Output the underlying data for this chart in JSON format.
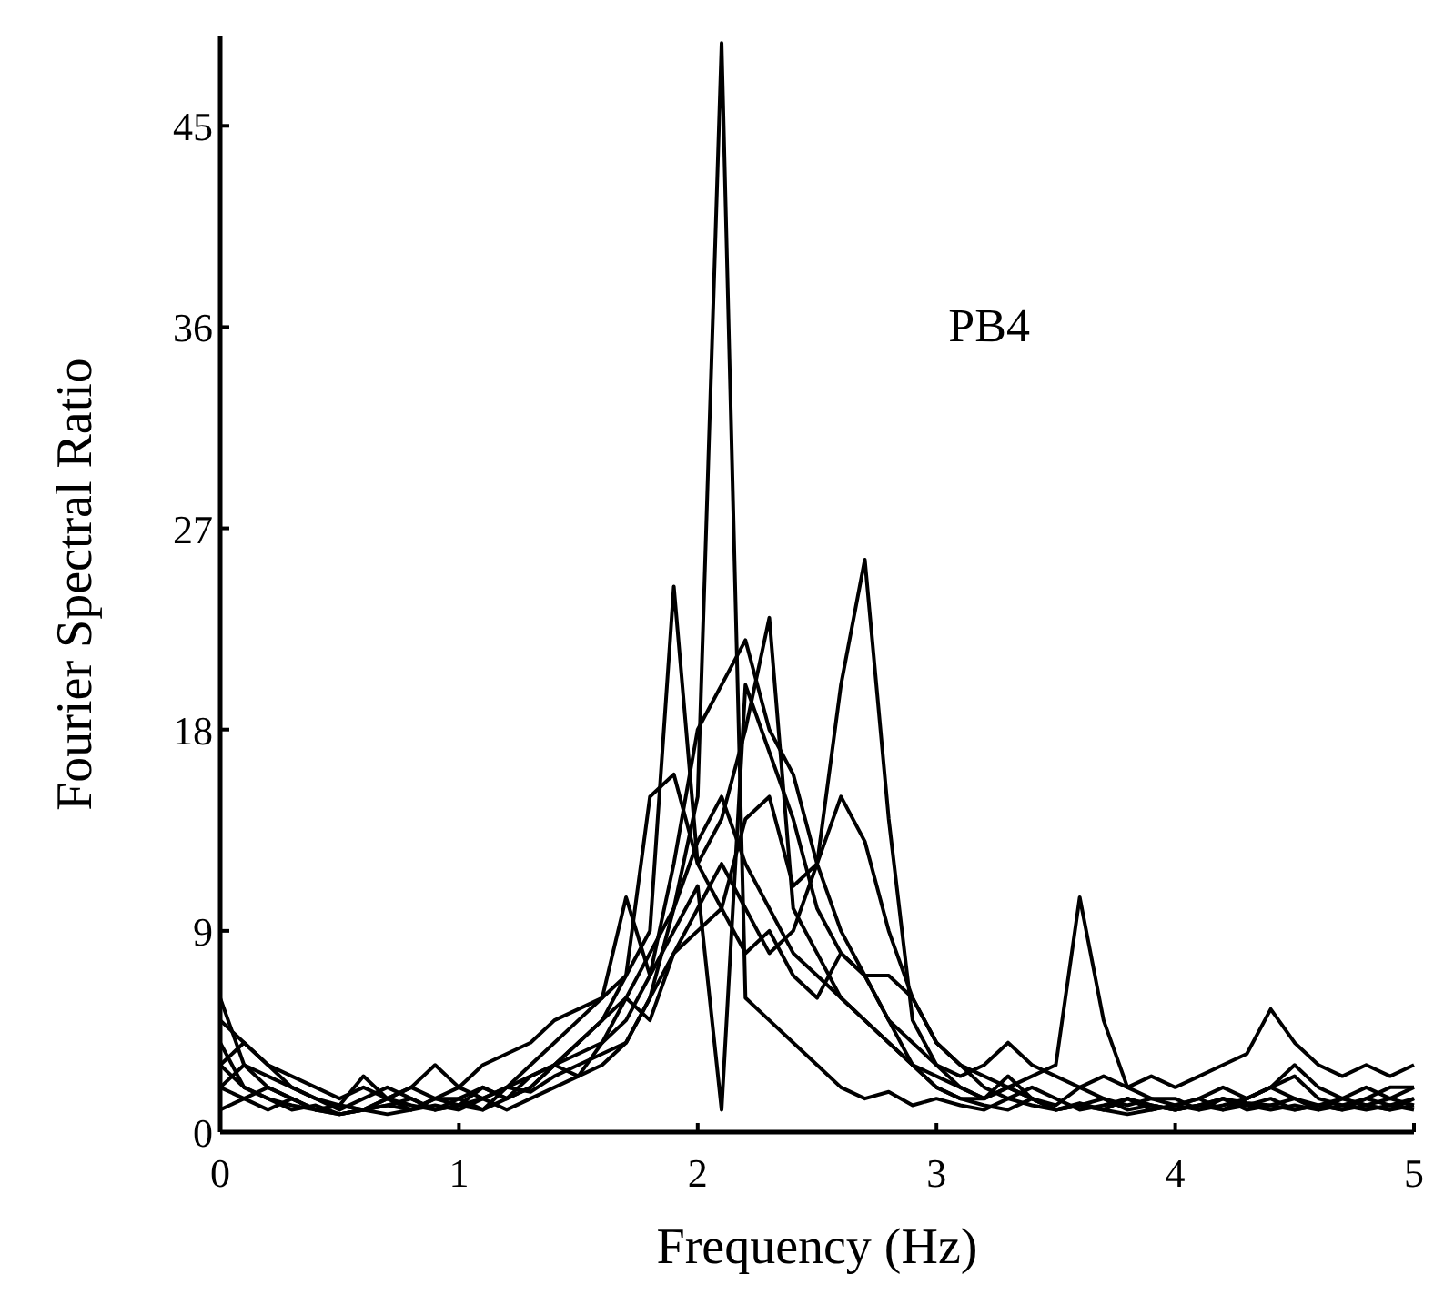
{
  "chart_data": {
    "type": "line",
    "xlabel": "Frequency (Hz)",
    "ylabel": "Fourier Spectral Ratio",
    "annotations": [
      "PB4"
    ],
    "x": [
      0,
      0.1,
      0.2,
      0.3,
      0.4,
      0.5,
      0.6,
      0.7,
      0.8,
      0.9,
      1,
      1.1,
      1.2,
      1.3,
      1.4,
      1.5,
      1.6,
      1.7,
      1.8,
      1.9,
      2,
      2.1,
      2.2,
      2.3,
      2.4,
      2.5,
      2.6,
      2.7,
      2.8,
      2.9,
      3,
      3.1,
      3.2,
      3.3,
      3.4,
      3.5,
      3.6,
      3.7,
      3.8,
      3.9,
      4,
      4.1,
      4.2,
      4.3,
      4.4,
      4.5,
      4.6,
      4.7,
      4.8,
      4.9,
      5
    ],
    "xlim": [
      0,
      5
    ],
    "xticks": [
      0,
      1,
      2,
      3,
      4,
      5
    ],
    "ylim": [
      0,
      49
    ],
    "yticks": [
      0,
      9,
      18,
      27,
      36,
      45
    ],
    "grid": false,
    "marker": "none",
    "line_style": "solid",
    "series": [
      {
        "color": "#000000",
        "values": [
          4,
          2,
          1.5,
          1,
          1.2,
          0.8,
          1,
          1.5,
          1,
          1.2,
          1,
          1.5,
          2,
          1.8,
          2.5,
          3,
          3.5,
          4,
          6,
          10,
          15,
          48.7,
          6,
          5,
          4,
          3,
          2,
          1.5,
          1.8,
          1.2,
          1.5,
          1.2,
          1,
          1.5,
          1.2,
          1,
          1.3,
          1,
          1.5,
          1.2,
          1,
          1.2,
          1.5,
          1.3,
          1.2,
          1,
          1.2,
          1.5,
          1.2,
          1,
          1.2
        ]
      },
      {
        "color": "#000000",
        "values": [
          6,
          3,
          2,
          1.5,
          1,
          1.2,
          1,
          0.8,
          1,
          1.5,
          1.2,
          1,
          1.5,
          2,
          3,
          4,
          5,
          7,
          9,
          24.4,
          12,
          14,
          18,
          23,
          10,
          8,
          6,
          5,
          4,
          3,
          2,
          1.5,
          1.2,
          1,
          1.5,
          1,
          1.2,
          1,
          0.8,
          1,
          1.2,
          1,
          1.5,
          1.2,
          1,
          1.2,
          1,
          1.5,
          1.2,
          1,
          1.5
        ]
      },
      {
        "color": "#000000",
        "values": [
          3,
          2,
          1.5,
          1.2,
          1,
          0.8,
          1,
          1.2,
          1.5,
          1,
          1.2,
          1.5,
          1,
          1.5,
          2,
          2.5,
          3,
          4,
          6,
          8,
          10,
          12,
          10,
          8,
          9,
          12,
          20,
          25.6,
          14,
          5,
          3,
          2,
          1.5,
          2,
          1.5,
          1,
          1.2,
          1,
          1.5,
          1.2,
          1,
          1.2,
          1.5,
          1,
          1.2,
          1.5,
          1,
          1.2,
          1,
          1.2,
          1
        ]
      },
      {
        "color": "#000000",
        "values": [
          5,
          4,
          3,
          2,
          1.5,
          1,
          1.5,
          2,
          1.5,
          1,
          1.2,
          2,
          1.5,
          2,
          3,
          4,
          5,
          6,
          8,
          10,
          13,
          15,
          12,
          10,
          8,
          7,
          6,
          5,
          4,
          3,
          2.5,
          2,
          1.5,
          2,
          2.5,
          3,
          10.5,
          5,
          2,
          1.5,
          1.2,
          1.5,
          2,
          1.5,
          2,
          3,
          2,
          1.5,
          2,
          1.5,
          2
        ]
      },
      {
        "color": "#000000",
        "values": [
          3,
          4,
          3,
          2.5,
          2,
          1.5,
          2,
          1.5,
          2,
          3,
          2,
          3,
          3.5,
          4,
          5,
          5.5,
          6,
          10.5,
          7,
          12,
          18,
          20,
          22,
          18,
          16,
          12,
          9,
          7,
          5,
          4,
          3,
          2.5,
          3,
          4,
          3,
          2.5,
          2,
          2.5,
          2,
          2.5,
          2,
          2.5,
          3,
          3.5,
          5.5,
          4,
          3,
          2.5,
          3,
          2.5,
          3
        ]
      },
      {
        "color": "#000000",
        "values": [
          2,
          1.5,
          1,
          1.5,
          1,
          0.8,
          1,
          1.2,
          1,
          1.5,
          2,
          1.5,
          2,
          3,
          4,
          5,
          6,
          7,
          15,
          16,
          12,
          10,
          14,
          15,
          11,
          12,
          15,
          13,
          9,
          6,
          4,
          3,
          2.5,
          2,
          1.5,
          1,
          1.2,
          1.5,
          1,
          1.2,
          1,
          1.2,
          1,
          1.5,
          2,
          1.5,
          1.2,
          1,
          1.5,
          1.2,
          1.5
        ]
      },
      {
        "color": "#000000",
        "values": [
          1,
          1.5,
          2,
          1.5,
          1,
          1.2,
          1,
          1.5,
          1.2,
          1,
          1.5,
          1,
          2,
          2.5,
          3,
          3.5,
          4,
          5,
          7,
          9,
          11,
          1,
          20,
          17,
          14,
          10,
          8,
          7,
          7,
          6,
          4,
          3,
          2,
          1.5,
          2,
          1.5,
          1,
          1.2,
          1.5,
          1,
          1.2,
          1.5,
          1,
          1.2,
          1.5,
          1,
          1.2,
          1,
          1.2,
          1.5,
          1.2
        ]
      },
      {
        "color": "#000000",
        "values": [
          2,
          3,
          2.5,
          2,
          1.5,
          1.2,
          2.5,
          1.5,
          2,
          1.5,
          1.5,
          2,
          1.5,
          2.5,
          3,
          2.5,
          4,
          6,
          5,
          8,
          9,
          10,
          8,
          9,
          7,
          6,
          8,
          7,
          5,
          3,
          2,
          1.5,
          1.5,
          2.5,
          1.5,
          1.2,
          2,
          1.5,
          1.2,
          1.5,
          1.5,
          1,
          1.2,
          1.5,
          2,
          2.5,
          1.5,
          1.2,
          1.5,
          2,
          2
        ]
      }
    ]
  }
}
